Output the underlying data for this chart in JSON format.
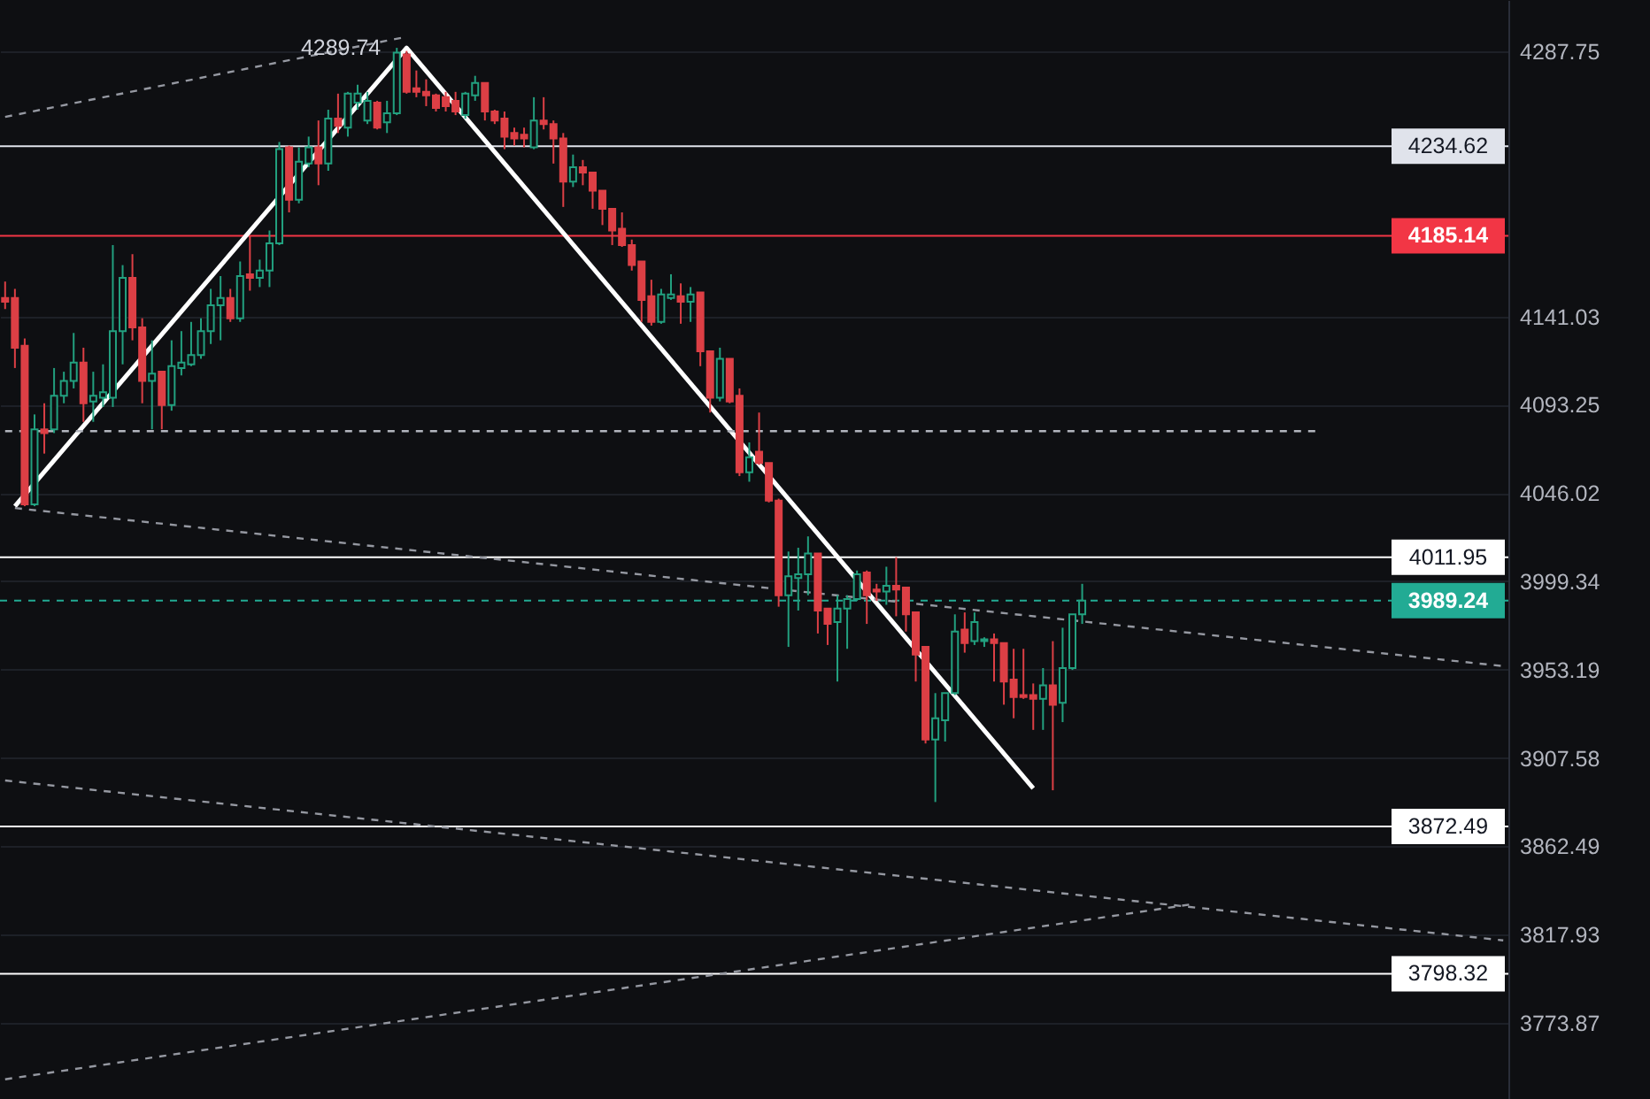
{
  "chart_data": {
    "type": "candlestick",
    "categories": [
      null,
      null,
      null,
      null,
      null,
      null,
      null,
      null,
      null,
      null,
      null,
      null,
      null,
      null,
      null,
      null,
      null,
      null,
      null,
      null,
      null,
      null,
      null,
      null,
      null,
      null,
      null,
      null,
      null,
      null,
      null,
      null,
      null,
      null,
      null,
      null,
      null,
      null,
      null,
      null,
      null,
      null,
      null,
      null,
      null,
      null,
      null,
      null,
      null,
      null,
      null,
      null,
      null,
      null,
      null,
      null,
      null,
      null,
      null,
      null,
      null,
      null,
      null,
      null,
      null,
      null,
      null,
      null,
      null,
      null,
      null,
      null,
      null,
      null,
      null,
      null,
      null,
      null,
      null,
      null,
      null,
      null,
      null,
      null,
      null,
      null,
      null,
      null,
      null,
      null,
      null,
      null,
      null,
      null,
      null,
      null,
      null,
      null,
      null,
      null,
      null,
      null,
      null,
      null,
      null,
      null,
      null,
      null,
      null,
      null,
      null,
      null,
      null,
      null,
      null,
      null,
      null,
      null,
      null,
      null,
      null,
      null,
      null,
      null,
      null,
      null,
      null,
      null,
      null,
      null,
      null,
      null,
      null,
      null,
      null,
      null,
      null,
      null,
      null,
      null,
      null,
      null,
      null,
      null,
      null,
      null,
      null,
      null,
      null,
      null,
      null,
      null,
      null,
      null
    ],
    "ohlc": [
      [
        4151,
        4160,
        4145,
        4149
      ],
      [
        4151,
        4156,
        4113,
        4124
      ],
      [
        4125,
        4129,
        4039,
        4040
      ],
      [
        4040,
        4088,
        4039,
        4080
      ],
      [
        4080,
        4094,
        4067,
        4078
      ],
      [
        4080,
        4113,
        4078,
        4098
      ],
      [
        4098,
        4111,
        4094,
        4106
      ],
      [
        4106,
        4132,
        4102,
        4116
      ],
      [
        4116,
        4124,
        4084,
        4094
      ],
      [
        4095,
        4111,
        4084,
        4098
      ],
      [
        4097,
        4115,
        4092,
        4100
      ],
      [
        4097,
        4180,
        4092,
        4133
      ],
      [
        4133,
        4169,
        4115,
        4162
      ],
      [
        4162,
        4175,
        4128,
        4135
      ],
      [
        4135,
        4140,
        4094,
        4106
      ],
      [
        4106,
        4128,
        4080,
        4110
      ],
      [
        4111,
        4111,
        4080,
        4093
      ],
      [
        4093,
        4128,
        4090,
        4114
      ],
      [
        4113,
        4133,
        4109,
        4116
      ],
      [
        4115,
        4138,
        4114,
        4120
      ],
      [
        4120,
        4140,
        4118,
        4133
      ],
      [
        4133,
        4156,
        4126,
        4147
      ],
      [
        4147,
        4163,
        4128,
        4151
      ],
      [
        4151,
        4156,
        4138,
        4140
      ],
      [
        4140,
        4171,
        4138,
        4163
      ],
      [
        4164,
        4185,
        4155,
        4162
      ],
      [
        4162,
        4172,
        4157,
        4166
      ],
      [
        4166,
        4188,
        4157,
        4181
      ],
      [
        4181,
        4237,
        4180,
        4233
      ],
      [
        4234,
        4235,
        4198,
        4205
      ],
      [
        4205,
        4234,
        4203,
        4226
      ],
      [
        4225,
        4240,
        4223,
        4234
      ],
      [
        4234,
        4249,
        4213,
        4225
      ],
      [
        4225,
        4255,
        4221,
        4250
      ],
      [
        4250,
        4264,
        4242,
        4246
      ],
      [
        4245,
        4265,
        4240,
        4264
      ],
      [
        4259,
        4269,
        4255,
        4264
      ],
      [
        4249,
        4265,
        4247,
        4260
      ],
      [
        4259,
        4260,
        4244,
        4245
      ],
      [
        4248,
        4260,
        4242,
        4253
      ],
      [
        4253,
        4289.74,
        4252,
        4287
      ],
      [
        4286,
        4288,
        4264,
        4265
      ],
      [
        4267,
        4277,
        4262,
        4265
      ],
      [
        4265,
        4272,
        4257,
        4263
      ],
      [
        4263,
        4264,
        4254,
        4256
      ],
      [
        4262,
        4265,
        4254,
        4257
      ],
      [
        4260,
        4265,
        4252,
        4254
      ],
      [
        4252,
        4265,
        4250,
        4264
      ],
      [
        4263,
        4274,
        4260,
        4270
      ],
      [
        4270,
        4270,
        4249,
        4254
      ],
      [
        4254,
        4255,
        4247,
        4249
      ],
      [
        4250,
        4254,
        4233,
        4240
      ],
      [
        4242,
        4245,
        4235,
        4239
      ],
      [
        4241,
        4245,
        4234,
        4239
      ],
      [
        4234,
        4262,
        4233,
        4249
      ],
      [
        4249,
        4262,
        4244,
        4247
      ],
      [
        4247,
        4249,
        4225,
        4239
      ],
      [
        4239,
        4242,
        4201,
        4215
      ],
      [
        4215,
        4230,
        4212,
        4223
      ],
      [
        4223,
        4227,
        4213,
        4220
      ],
      [
        4220,
        4220,
        4200,
        4210
      ],
      [
        4210,
        4210,
        4191,
        4200
      ],
      [
        4200,
        4200,
        4180,
        4188
      ],
      [
        4189,
        4198,
        4179,
        4180
      ],
      [
        4180,
        4183,
        4166,
        4169
      ],
      [
        4171,
        4171,
        4138,
        4150
      ],
      [
        4152,
        4161,
        4136,
        4138
      ],
      [
        4138,
        4156,
        4137,
        4153
      ],
      [
        4151,
        4164,
        4150,
        4153
      ],
      [
        4152,
        4159,
        4137,
        4149
      ],
      [
        4149,
        4157,
        4138,
        4153
      ],
      [
        4154,
        4154,
        4114,
        4122
      ],
      [
        4122,
        4122,
        4089,
        4097
      ],
      [
        4097,
        4124,
        4095,
        4118
      ],
      [
        4118,
        4118,
        4094,
        4095
      ],
      [
        4098,
        4102,
        4055,
        4057
      ],
      [
        4057,
        4073,
        4052,
        4065
      ],
      [
        4068,
        4089,
        4061,
        4062
      ],
      [
        4062,
        4062,
        4041,
        4042
      ],
      [
        4042,
        4043,
        3986,
        3992
      ],
      [
        3992,
        4015,
        3965,
        4002
      ],
      [
        4001,
        4017,
        3984,
        4003
      ],
      [
        4003,
        4023,
        3992,
        4014
      ],
      [
        4014,
        4014,
        3972,
        3984
      ],
      [
        3985,
        3985,
        3966,
        3977
      ],
      [
        3978,
        3992,
        3947,
        3985
      ],
      [
        3985,
        3992,
        3964,
        3990
      ],
      [
        3990,
        4005,
        3989,
        4003
      ],
      [
        4004,
        4005,
        3977,
        3992
      ],
      [
        3995,
        3998,
        3989,
        3994
      ],
      [
        3994,
        4007,
        3987,
        3997
      ],
      [
        3997,
        4012,
        3981,
        3995
      ],
      [
        3996,
        3996,
        3973,
        3982
      ],
      [
        3983,
        3983,
        3947,
        3961
      ],
      [
        3965,
        3965,
        3915,
        3917
      ],
      [
        3917,
        3941,
        3885,
        3928
      ],
      [
        3927,
        3941,
        3916,
        3941
      ],
      [
        3941,
        3982,
        3940,
        3973
      ],
      [
        3974,
        3983,
        3962,
        3967
      ],
      [
        3968,
        3983,
        3966,
        3978
      ],
      [
        3968,
        3970,
        3965,
        3969
      ],
      [
        3969,
        3972,
        3947,
        3967
      ],
      [
        3967,
        3967,
        3935,
        3947
      ],
      [
        3948,
        3964,
        3928,
        3939
      ],
      [
        3940,
        3964,
        3938,
        3939
      ],
      [
        3940,
        3946,
        3922,
        3938
      ],
      [
        3938,
        3954,
        3922,
        3945
      ],
      [
        3945,
        3968,
        3891,
        3935
      ],
      [
        3936,
        3975,
        3926,
        3954
      ],
      [
        3954,
        3982,
        3953,
        3982
      ],
      [
        3982,
        3998,
        3977,
        3989.24
      ],
      null,
      null,
      null,
      null,
      null,
      null,
      null,
      null,
      null,
      null,
      null,
      null,
      null,
      null,
      null,
      null,
      null,
      null,
      null,
      null,
      null,
      null,
      null,
      null,
      null,
      null,
      null,
      null,
      null,
      null,
      null,
      null,
      null,
      null,
      null,
      null,
      null,
      null,
      null,
      null,
      null,
      null,
      null
    ],
    "colors": [
      "#dc3f45",
      "#dc3f45",
      "#dc3f45",
      "#22a07f",
      "#dc3f45",
      "#22a07f",
      "#22a07f",
      "#22a07f",
      "#dc3f45",
      "#22a07f",
      "#22a07f",
      "#22a07f",
      "#22a07f",
      "#dc3f45",
      "#dc3f45",
      "#22a07f",
      "#dc3f45",
      "#22a07f",
      "#22a07f",
      "#22a07f",
      "#22a07f",
      "#22a07f",
      "#22a07f",
      "#dc3f45",
      "#22a07f",
      "#dc3f45",
      "#22a07f",
      "#22a07f",
      "#22a07f",
      "#dc3f45",
      "#22a07f",
      "#22a07f",
      "#dc3f45",
      "#22a07f",
      "#dc3f45",
      "#22a07f",
      "#22a07f",
      "#22a07f",
      "#dc3f45",
      "#22a07f",
      "#22a07f",
      "#dc3f45",
      "#dc3f45",
      "#dc3f45",
      "#dc3f45",
      "#dc3f45",
      "#dc3f45",
      "#22a07f",
      "#22a07f",
      "#dc3f45",
      "#dc3f45",
      "#dc3f45",
      "#dc3f45",
      "#dc3f45",
      "#22a07f",
      "#dc3f45",
      "#dc3f45",
      "#dc3f45",
      "#22a07f",
      "#dc3f45",
      "#dc3f45",
      "#dc3f45",
      "#dc3f45",
      "#dc3f45",
      "#dc3f45",
      "#dc3f45",
      "#dc3f45",
      "#22a07f",
      "#22a07f",
      "#dc3f45",
      "#22a07f",
      "#dc3f45",
      "#dc3f45",
      "#22a07f",
      "#dc3f45",
      "#dc3f45",
      "#22a07f",
      "#dc3f45",
      "#dc3f45",
      "#dc3f45",
      "#22a07f",
      "#22a07f",
      "#22a07f",
      "#dc3f45",
      "#dc3f45",
      "#22a07f",
      "#22a07f",
      "#22a07f",
      "#dc3f45",
      "#dc3f45",
      "#22a07f",
      "#dc3f45",
      "#dc3f45",
      "#dc3f45",
      "#dc3f45",
      "#22a07f",
      "#22a07f",
      "#22a07f",
      "#dc3f45",
      "#22a07f",
      "#22a07f",
      "#dc3f45",
      "#dc3f45",
      "#dc3f45",
      "#dc3f45",
      "#dc3f45",
      "#22a07f",
      "#dc3f45",
      "#22a07f",
      "#22a07f",
      "#22a07f",
      null,
      null,
      null,
      null,
      null,
      null,
      null,
      null,
      null,
      null,
      null,
      null,
      null,
      null,
      null,
      null,
      null,
      null,
      null,
      null,
      null,
      null,
      null,
      null,
      null,
      null,
      null,
      null,
      null,
      null,
      null,
      null,
      null,
      null,
      null,
      null,
      null,
      null,
      null,
      null,
      null,
      null,
      null
    ],
    "series": [
      {
        "type": "line",
        "color": "#ffffff",
        "line_style": "solid",
        "values": [
          null,
          4039,
          null,
          null,
          null,
          null,
          null,
          null,
          null,
          null,
          null,
          null,
          null,
          null,
          null,
          null,
          null,
          null,
          null,
          null,
          null,
          null,
          null,
          null,
          null,
          null,
          null,
          null,
          null,
          null,
          null,
          null,
          null,
          null,
          null,
          null,
          null,
          null,
          null,
          null,
          null,
          4289.74,
          null,
          null,
          null,
          null,
          null,
          null,
          null,
          null,
          null,
          null,
          null,
          null,
          null,
          null,
          null,
          null,
          null,
          null,
          null,
          null,
          null,
          null,
          null,
          null,
          null,
          null,
          null,
          null,
          null,
          null,
          null,
          null,
          null,
          null,
          null,
          null,
          null,
          null,
          null,
          null,
          null,
          null,
          null,
          null,
          null,
          null,
          null,
          null,
          null,
          null,
          null,
          null,
          null,
          null,
          null,
          null,
          null,
          null,
          null,
          null,
          null,
          null,
          null,
          3892,
          null,
          null,
          null,
          null,
          null,
          null,
          null,
          null,
          null,
          null,
          null,
          null,
          null,
          null,
          null,
          null,
          null,
          null,
          null,
          null,
          null,
          null,
          null,
          null,
          null,
          null,
          null,
          null,
          null,
          null,
          null,
          null,
          null,
          null,
          null,
          null,
          null,
          null,
          null,
          null,
          null,
          null,
          null,
          null,
          null,
          null,
          null,
          null
        ]
      },
      {
        "type": "line",
        "color": "#9598a1",
        "line_style": "dashed",
        "values": [
          4251,
          null,
          null,
          null,
          null,
          null,
          null,
          null,
          null,
          null,
          null,
          null,
          null,
          null,
          null,
          null,
          null,
          null,
          null,
          null,
          null,
          null,
          null,
          null,
          null,
          null,
          null,
          null,
          null,
          null,
          null,
          null,
          null,
          null,
          null,
          null,
          null,
          null,
          null,
          null,
          null,
          4296,
          null,
          null,
          null,
          null,
          null,
          null,
          null,
          null,
          null,
          null,
          null,
          null,
          null,
          null,
          null,
          null,
          null,
          null,
          null,
          null,
          null,
          null,
          null,
          null,
          null,
          null,
          null,
          null,
          null,
          null,
          null,
          null,
          null,
          null,
          null,
          null,
          null,
          null,
          null,
          null,
          null,
          null,
          null,
          null,
          null,
          null,
          null,
          null,
          null,
          null,
          null,
          null,
          null,
          null,
          null,
          null,
          null,
          null,
          null,
          null,
          null,
          null,
          null,
          null,
          null,
          null,
          null,
          null,
          null,
          null,
          null,
          null,
          null,
          null,
          null,
          null,
          null,
          null,
          null,
          null,
          null,
          null,
          null,
          null,
          null,
          null,
          null,
          null,
          null,
          null,
          null,
          null,
          null,
          null,
          null,
          null,
          null,
          null,
          null,
          null,
          null,
          null,
          null,
          null,
          null,
          null,
          null,
          null,
          null,
          null,
          null,
          null
        ]
      },
      {
        "type": "line",
        "color": "#9598a1",
        "line_style": "dashed",
        "values": [
          null,
          4038,
          null,
          null,
          null,
          null,
          null,
          null,
          null,
          null,
          null,
          null,
          null,
          null,
          null,
          null,
          null,
          null,
          null,
          null,
          null,
          null,
          null,
          null,
          null,
          null,
          null,
          null,
          null,
          null,
          null,
          null,
          null,
          null,
          null,
          null,
          null,
          null,
          null,
          null,
          null,
          null,
          null,
          null,
          null,
          null,
          null,
          null,
          null,
          null,
          null,
          null,
          null,
          null,
          null,
          null,
          null,
          null,
          null,
          null,
          null,
          null,
          null,
          null,
          null,
          null,
          null,
          null,
          null,
          null,
          null,
          null,
          null,
          null,
          null,
          null,
          null,
          null,
          null,
          null,
          null,
          null,
          null,
          null,
          null,
          null,
          null,
          null,
          null,
          null,
          null,
          null,
          null,
          null,
          null,
          null,
          null,
          null,
          null,
          null,
          null,
          null,
          null,
          null,
          null,
          null,
          null,
          null,
          null,
          null,
          null,
          null,
          null,
          null,
          null,
          null,
          null,
          null,
          null,
          null,
          null,
          null,
          null,
          null,
          null,
          null,
          null,
          null,
          null,
          null,
          null,
          null,
          null,
          null,
          null,
          null,
          null,
          null,
          null,
          null,
          null,
          null,
          null,
          null,
          null,
          null,
          null,
          null,
          null,
          null,
          null,
          null,
          null,
          3955
        ]
      },
      {
        "type": "line",
        "color": "#9598a1",
        "line_style": "dashed",
        "values": [
          3896,
          null,
          null,
          null,
          null,
          null,
          null,
          null,
          null,
          null,
          null,
          null,
          null,
          null,
          null,
          null,
          null,
          null,
          null,
          null,
          null,
          null,
          null,
          null,
          null,
          null,
          null,
          null,
          null,
          null,
          null,
          null,
          null,
          null,
          null,
          null,
          null,
          null,
          null,
          null,
          null,
          null,
          null,
          null,
          null,
          null,
          null,
          null,
          null,
          null,
          null,
          null,
          null,
          null,
          null,
          null,
          null,
          null,
          null,
          null,
          null,
          null,
          null,
          null,
          null,
          null,
          null,
          null,
          null,
          null,
          null,
          null,
          null,
          null,
          null,
          null,
          null,
          null,
          null,
          null,
          null,
          null,
          null,
          null,
          null,
          null,
          null,
          null,
          null,
          null,
          null,
          null,
          null,
          null,
          null,
          null,
          null,
          null,
          null,
          null,
          null,
          null,
          null,
          null,
          null,
          null,
          null,
          null,
          null,
          null,
          null,
          null,
          null,
          null,
          null,
          null,
          null,
          null,
          null,
          null,
          null,
          null,
          null,
          null,
          null,
          null,
          null,
          null,
          null,
          null,
          null,
          null,
          null,
          null,
          null,
          null,
          null,
          null,
          null,
          null,
          null,
          null,
          null,
          null,
          null,
          null,
          null,
          null,
          null,
          null,
          null,
          null,
          null,
          3815
        ]
      },
      {
        "type": "line",
        "color": "#9598a1",
        "line_style": "dashed",
        "values": [
          3746,
          null,
          null,
          null,
          null,
          null,
          null,
          null,
          null,
          null,
          null,
          null,
          null,
          null,
          null,
          null,
          null,
          null,
          null,
          null,
          null,
          null,
          null,
          null,
          null,
          null,
          null,
          null,
          null,
          null,
          null,
          null,
          null,
          null,
          null,
          null,
          null,
          null,
          null,
          null,
          null,
          null,
          null,
          null,
          null,
          null,
          null,
          null,
          null,
          null,
          null,
          null,
          null,
          null,
          null,
          null,
          null,
          null,
          null,
          null,
          null,
          null,
          null,
          null,
          null,
          null,
          null,
          null,
          null,
          null,
          null,
          null,
          null,
          null,
          null,
          null,
          null,
          null,
          null,
          null,
          null,
          null,
          null,
          null,
          null,
          null,
          null,
          null,
          null,
          null,
          null,
          null,
          null,
          null,
          null,
          null,
          null,
          null,
          null,
          null,
          null,
          null,
          null,
          null,
          null,
          null,
          null,
          null,
          null,
          null,
          null,
          null,
          null,
          null,
          null,
          null,
          null,
          null,
          null,
          null,
          null,
          3833,
          null,
          null,
          null,
          null,
          null,
          null,
          null,
          null,
          null,
          null,
          null,
          null,
          null,
          null,
          null,
          null,
          null,
          null,
          null,
          null,
          null,
          null,
          null,
          null,
          null,
          null,
          null,
          null,
          null,
          null,
          null,
          null
        ]
      },
      {
        "type": "line",
        "color": "#b2b5be",
        "line_style": "dashed",
        "values": [
          4079,
          null,
          null,
          null,
          null,
          null,
          null,
          null,
          null,
          null,
          null,
          null,
          null,
          null,
          null,
          null,
          null,
          null,
          null,
          null,
          null,
          null,
          null,
          null,
          null,
          null,
          null,
          null,
          null,
          null,
          null,
          null,
          null,
          null,
          null,
          null,
          null,
          null,
          null,
          null,
          null,
          null,
          null,
          null,
          null,
          null,
          null,
          null,
          null,
          null,
          null,
          null,
          null,
          null,
          null,
          null,
          null,
          null,
          null,
          null,
          null,
          null,
          null,
          null,
          null,
          null,
          null,
          null,
          null,
          null,
          null,
          null,
          null,
          null,
          null,
          null,
          null,
          null,
          null,
          null,
          null,
          null,
          null,
          null,
          null,
          null,
          null,
          null,
          null,
          null,
          null,
          null,
          null,
          null,
          null,
          null,
          null,
          null,
          null,
          null,
          null,
          null,
          null,
          null,
          null,
          null,
          null,
          null,
          null,
          null,
          null,
          null,
          null,
          null,
          null,
          null,
          null,
          null,
          null,
          null,
          null,
          null,
          null,
          null,
          null,
          null,
          null,
          null,
          null,
          null,
          null,
          null,
          null,
          null,
          4079,
          null,
          null,
          null,
          null,
          null,
          null,
          null,
          null,
          null,
          null,
          null,
          null,
          null,
          null,
          null,
          null,
          null,
          null,
          null
        ]
      }
    ],
    "ylim": [
      3736.3,
      4316.8
    ],
    "yticks": [
      4287.75,
      4141.03,
      4093.25,
      4046.02,
      3999.34,
      3953.19,
      3907.58,
      3862.49,
      3817.93,
      3773.87
    ],
    "log": "y",
    "grid": "y",
    "tick_labels": "y",
    "ref_lines": [
      {
        "axis": "y",
        "value": 4234.62,
        "label": "4234.62",
        "color": "#e0e3eb"
      },
      {
        "axis": "y",
        "value": 4185.14,
        "label": "4185.14",
        "color": "#f23645"
      },
      {
        "axis": "y",
        "value": 4011.95,
        "label": "4011.95",
        "color": "#ffffff"
      },
      {
        "axis": "y",
        "value": 3989.24,
        "label": "3989.24",
        "color": "#22ab94",
        "line_style": "dashed"
      },
      {
        "axis": "y",
        "value": 3872.49,
        "label": "3872.49",
        "color": "#ffffff"
      },
      {
        "axis": "y",
        "value": 3798.32,
        "label": "3798.32",
        "color": "#ffffff"
      }
    ],
    "annotations": [
      {
        "text": "4289.74",
        "y": 4289.74
      }
    ]
  }
}
